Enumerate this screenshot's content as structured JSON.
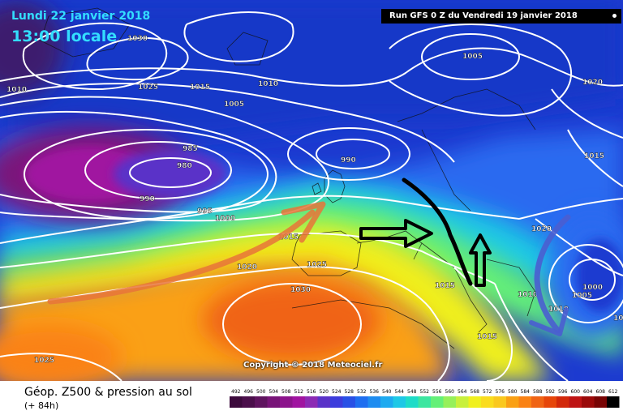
{
  "header": {
    "date": "Lundi 22 janvier 2018",
    "time": "13:00 locale",
    "run": "Run GFS 0 Z du Vendredi 19 janvier 2018"
  },
  "footer": {
    "title": "Géop. Z500 & pression au sol",
    "lead": "(+ 84h)",
    "copyright": "Copyright © 2018 Meteociel.fr"
  },
  "scale": {
    "labels": [
      "492",
      "496",
      "500",
      "504",
      "508",
      "512",
      "516",
      "520",
      "524",
      "528",
      "532",
      "536",
      "540",
      "544",
      "548",
      "552",
      "556",
      "560",
      "564",
      "568",
      "572",
      "576",
      "580",
      "584",
      "588",
      "592",
      "596",
      "600",
      "604",
      "608",
      "612"
    ],
    "colors": [
      "#3c0a3c",
      "#4b0f4b",
      "#5f145f",
      "#781478",
      "#8c148c",
      "#a014a0",
      "#8c2ab4",
      "#5a32c8",
      "#3c3cdc",
      "#2850e6",
      "#1e6ef0",
      "#1e8cf0",
      "#1eaaf0",
      "#1ec8e6",
      "#1edcc8",
      "#3ce6a0",
      "#64f078",
      "#96f05a",
      "#c8f03c",
      "#f0f01e",
      "#fadc1e",
      "#fac81e",
      "#faa014",
      "#fa8214",
      "#f06414",
      "#e6460a",
      "#d2280a",
      "#be1414",
      "#9b0a0a",
      "#780505",
      "#000000"
    ]
  },
  "isobar_labels": [
    "1030",
    "1005",
    "1020",
    "1025",
    "1015",
    "1010",
    "1010",
    "1005",
    "985",
    "980",
    "990",
    "990",
    "995",
    "1000",
    "1015",
    "1015",
    "1020",
    "1025",
    "1030",
    "1015",
    "1020",
    "1000",
    "1005",
    "1010",
    "1010",
    "1015",
    "1025",
    "1010"
  ],
  "colors": {
    "header_text": "#33ddff",
    "isobars": "#ffffff",
    "orange_arrow": "#e8743a",
    "blue_arrow": "#4a5ed0",
    "black_annotations": "#000000"
  }
}
